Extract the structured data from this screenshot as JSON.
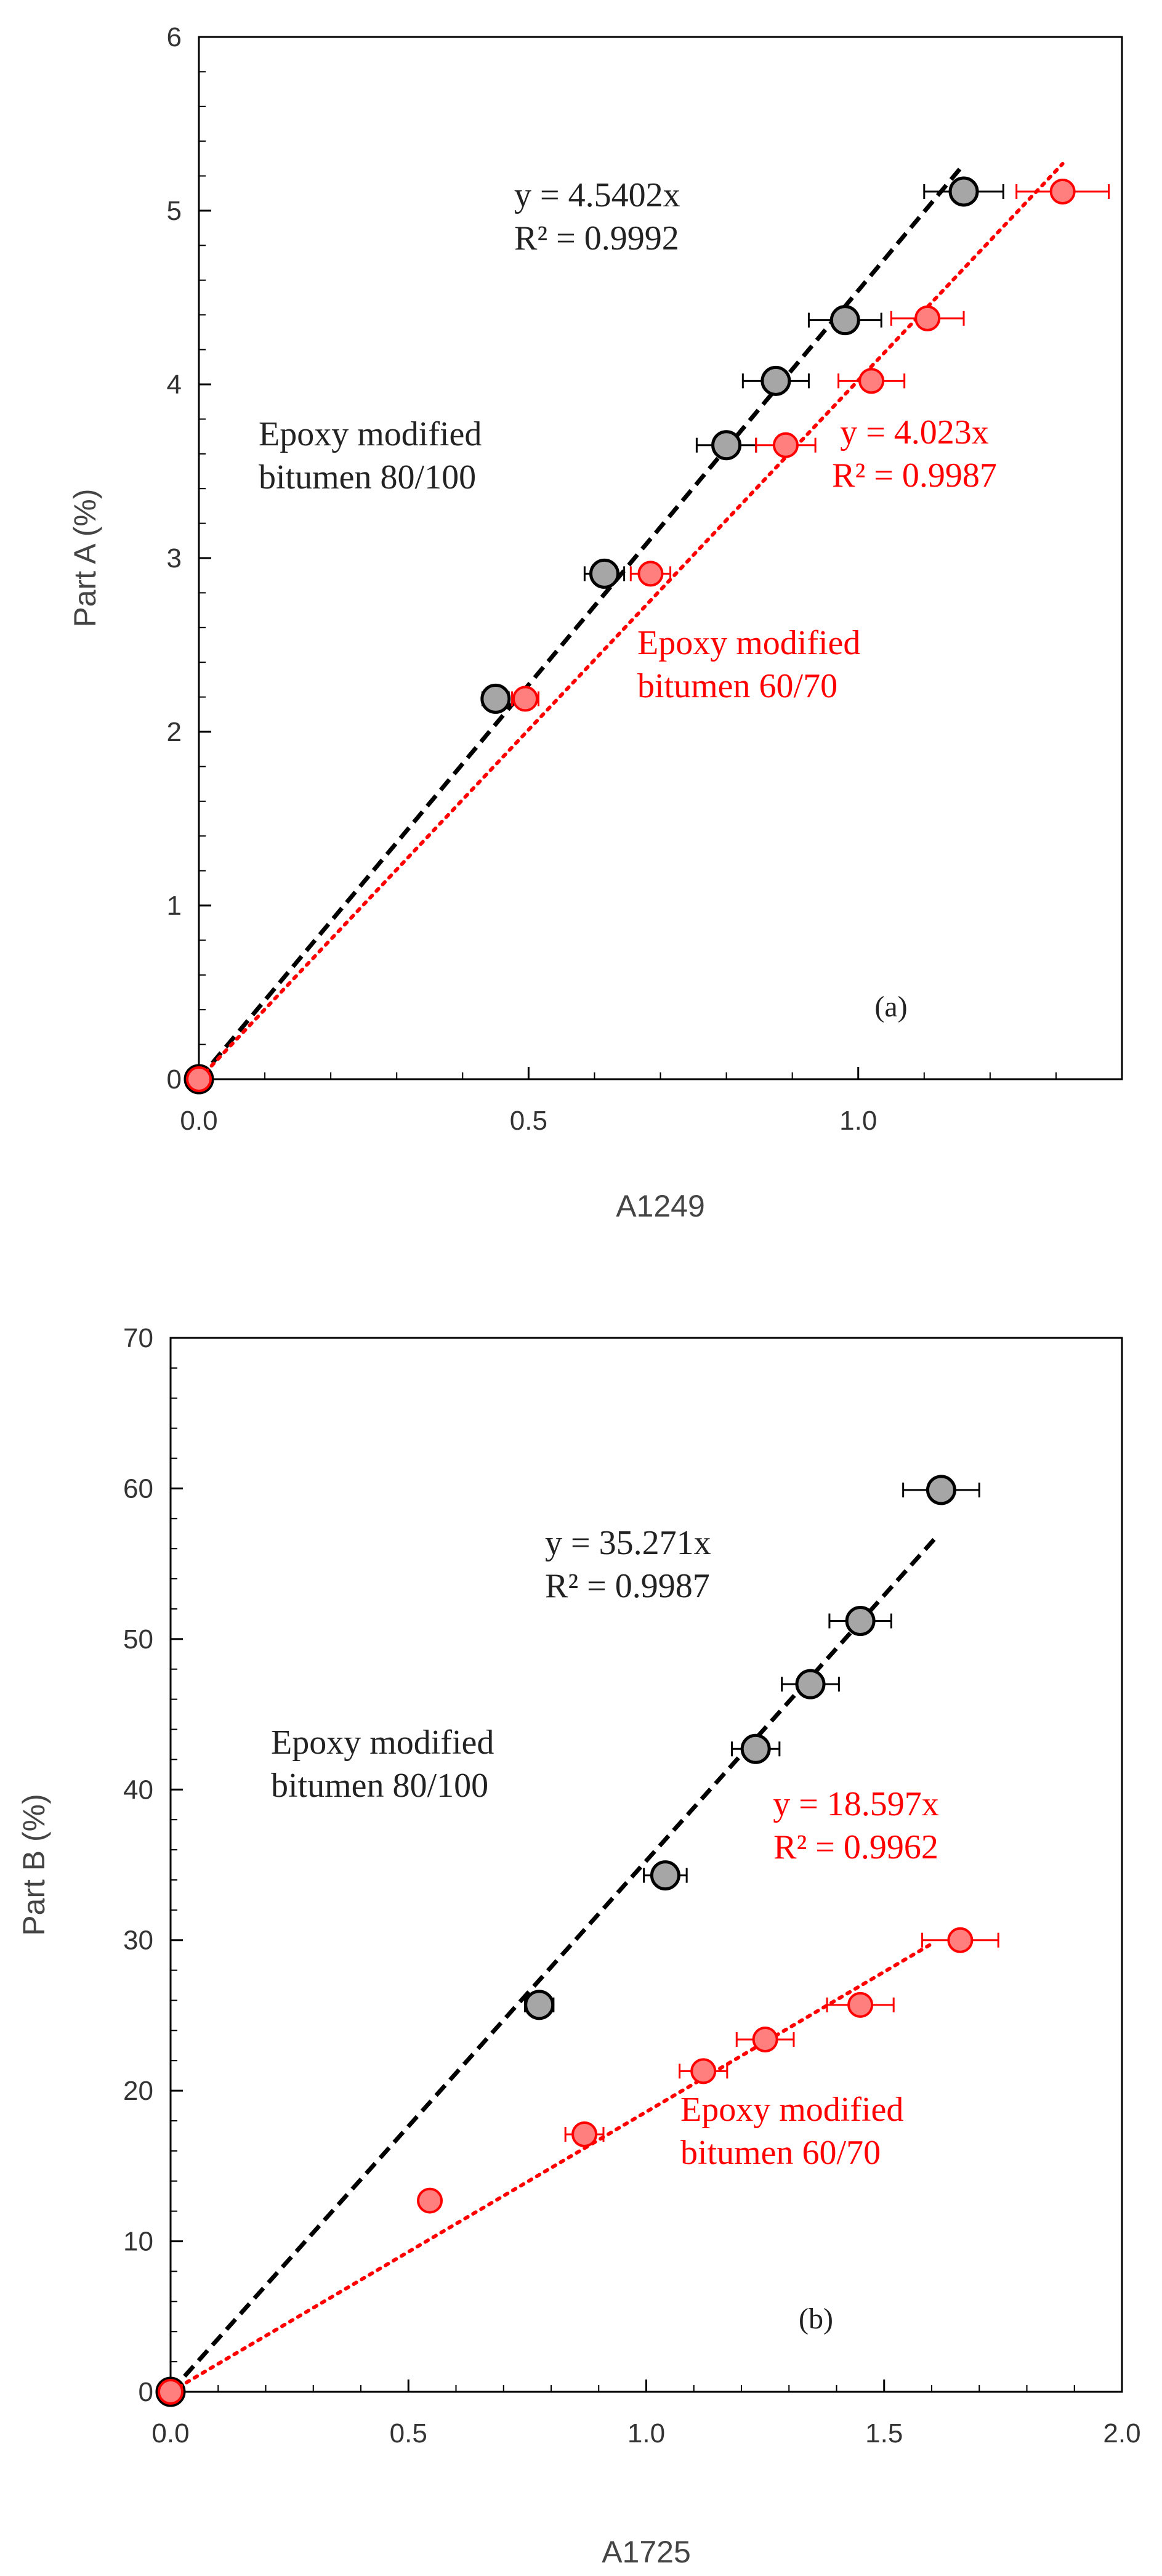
{
  "chart_data": [
    {
      "type": "scatter",
      "panel_label": "(a)",
      "xlabel": "A1249",
      "ylabel": "Part A (%)",
      "xlim": [
        0,
        1.4
      ],
      "ylim": [
        0,
        6
      ],
      "xticks": [
        0.0,
        0.5,
        1.0
      ],
      "yticks": [
        0,
        1,
        2,
        3,
        4,
        5,
        6
      ],
      "xtick_labels": [
        "0.0",
        "0.5",
        "1.0"
      ],
      "ytick_labels": [
        "0",
        "1",
        "2",
        "3",
        "4",
        "5",
        "6"
      ],
      "series": [
        {
          "name": "Epoxy modified bitumen 80/100",
          "color": "#000000",
          "marker_fill": "#a6a6a6",
          "trendline": "dashed",
          "slope": 4.5402,
          "trend_x_end": 1.16,
          "equation": "y = 4.5402x",
          "r2": "R² = 0.9992",
          "label_lines": [
            "Epoxy modified",
            "bitumen 80/100"
          ],
          "x": [
            0,
            0.45,
            0.615,
            0.8,
            0.875,
            0.98,
            1.16
          ],
          "y": [
            0,
            2.19,
            2.91,
            3.65,
            4.02,
            4.37,
            5.11
          ],
          "xerr": [
            0,
            0.02,
            0.03,
            0.045,
            0.05,
            0.055,
            0.06
          ]
        },
        {
          "name": "Epoxy modified bitumen 60/70",
          "color": "#ff0000",
          "marker_fill": "#ff7f7f",
          "trendline": "dotted",
          "slope": 4.023,
          "trend_x_end": 1.31,
          "equation": "y = 4.023x",
          "r2": "R² = 0.9987",
          "label_lines": [
            "Epoxy modified",
            "bitumen 60/70"
          ],
          "x": [
            0,
            0.495,
            0.685,
            0.89,
            1.02,
            1.105,
            1.31
          ],
          "y": [
            0,
            2.19,
            2.91,
            3.65,
            4.02,
            4.38,
            5.11
          ],
          "xerr": [
            0,
            0.02,
            0.03,
            0.045,
            0.05,
            0.055,
            0.07
          ]
        }
      ]
    },
    {
      "type": "scatter",
      "panel_label": "(b)",
      "xlabel": "A1725",
      "ylabel": "Part B (%)",
      "xlim": [
        0,
        2.0
      ],
      "ylim": [
        0,
        70
      ],
      "xticks": [
        0.0,
        0.5,
        1.0,
        1.5,
        2.0
      ],
      "yticks": [
        0,
        10,
        20,
        30,
        40,
        50,
        60,
        70
      ],
      "xtick_labels": [
        "0.0",
        "0.5",
        "1.0",
        "1.5",
        "2.0"
      ],
      "ytick_labels": [
        "0",
        "10",
        "20",
        "30",
        "40",
        "50",
        "60",
        "70"
      ],
      "series": [
        {
          "name": "Epoxy modified bitumen 80/100",
          "color": "#000000",
          "marker_fill": "#a6a6a6",
          "trendline": "dashed",
          "slope": 35.271,
          "trend_x_end": 1.61,
          "equation": "y = 35.271x",
          "r2": "R² = 0.9987",
          "label_lines": [
            "Epoxy modified",
            "bitumen 80/100"
          ],
          "x": [
            0,
            0.775,
            1.04,
            1.23,
            1.345,
            1.45,
            1.62
          ],
          "y": [
            0,
            25.7,
            34.3,
            42.7,
            47.0,
            51.2,
            59.9
          ],
          "xerr": [
            0,
            0.03,
            0.045,
            0.05,
            0.06,
            0.065,
            0.08
          ]
        },
        {
          "name": "Epoxy modified bitumen 60/70",
          "color": "#ff0000",
          "marker_fill": "#ff7f7f",
          "trendline": "dotted",
          "slope": 18.597,
          "trend_x_end": 1.6,
          "equation": "y = 18.597x",
          "r2": "R² = 0.9962",
          "label_lines": [
            "Epoxy modified",
            "bitumen 60/70"
          ],
          "x": [
            0,
            0.545,
            0.87,
            1.12,
            1.25,
            1.45,
            1.66
          ],
          "y": [
            0,
            12.7,
            17.1,
            21.3,
            23.4,
            25.7,
            30.0
          ],
          "xerr": [
            0,
            0.015,
            0.04,
            0.05,
            0.06,
            0.07,
            0.08
          ]
        }
      ]
    }
  ]
}
